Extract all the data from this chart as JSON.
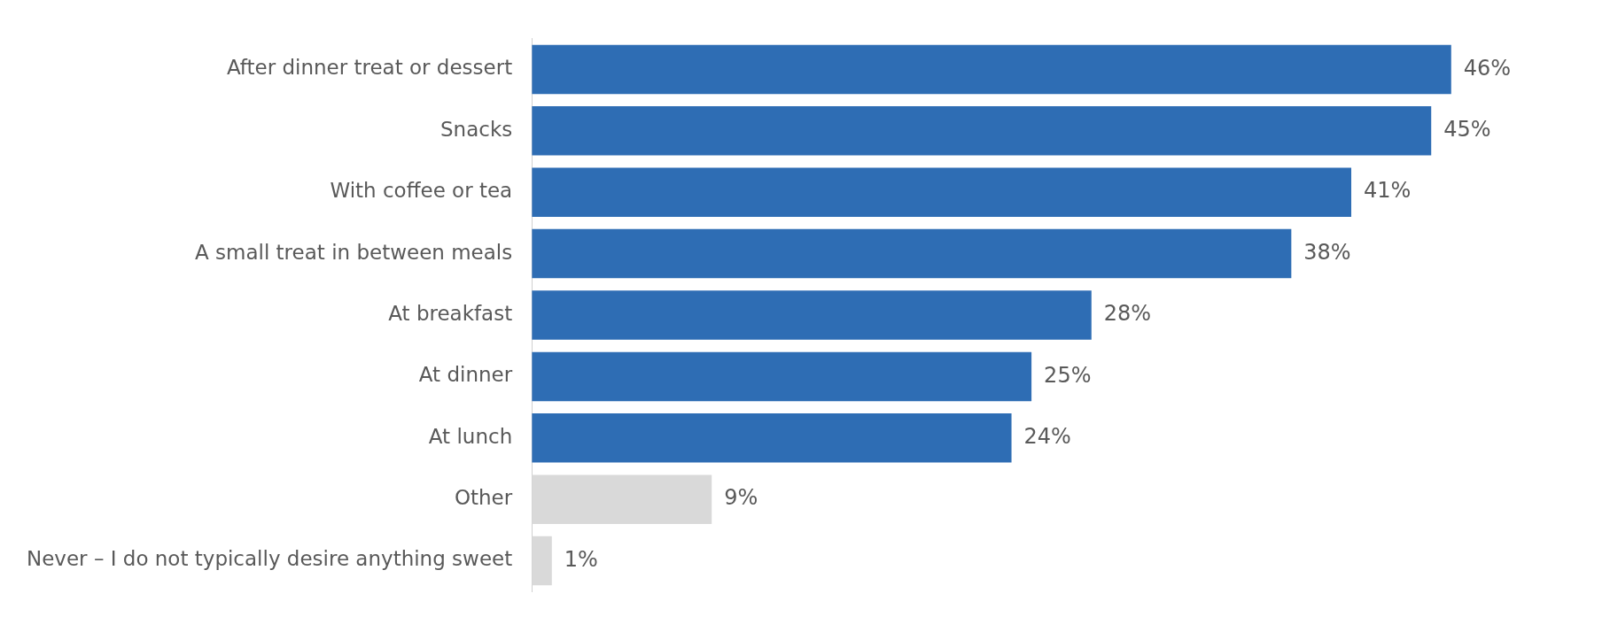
{
  "chart_data": {
    "type": "bar",
    "orientation": "horizontal",
    "categories": [
      "After dinner treat or dessert",
      "Snacks",
      "With coffee or tea",
      "A small treat in between meals",
      "At breakfast",
      "At dinner",
      "At lunch",
      "Other",
      "Never – I do not typically desire anything sweet"
    ],
    "values": [
      46,
      45,
      41,
      38,
      28,
      25,
      24,
      9,
      1
    ],
    "colors": [
      "#2e6db4",
      "#2e6db4",
      "#2e6db4",
      "#2e6db4",
      "#2e6db4",
      "#2e6db4",
      "#2e6db4",
      "#d9d9d9",
      "#d9d9d9"
    ],
    "value_labels": [
      "46%",
      "45%",
      "41%",
      "38%",
      "28%",
      "25%",
      "24%",
      "9%",
      "1%"
    ],
    "grid": false,
    "legend": false
  }
}
